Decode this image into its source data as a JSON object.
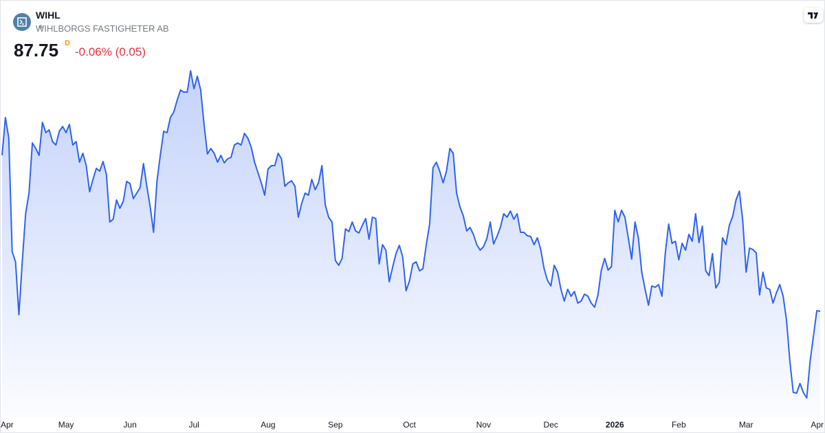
{
  "chart_data": {
    "type": "line",
    "title": "WIHL",
    "subtitle": "WIHLBORGS FASTIGHETER AB",
    "last_price": "87.75",
    "interval_flag": "D",
    "change_label": "-0.06% (0.05)",
    "color": "#2e62f0",
    "ylim": [
      80,
      106
    ],
    "categories": [
      null,
      null,
      "Apr",
      null,
      null,
      null,
      null,
      null,
      null,
      null,
      null,
      null,
      null,
      null,
      null,
      null,
      null,
      null,
      null,
      "May",
      null,
      null,
      null,
      null,
      null,
      null,
      null,
      null,
      null,
      null,
      null,
      null,
      null,
      null,
      null,
      null,
      null,
      null,
      "Jun",
      null,
      null,
      null,
      null,
      null,
      null,
      null,
      null,
      null,
      null,
      null,
      null,
      null,
      null,
      null,
      null,
      null,
      null,
      "Jul",
      null,
      null,
      null,
      null,
      null,
      null,
      null,
      null,
      null,
      null,
      null,
      null,
      null,
      null,
      null,
      null,
      null,
      null,
      null,
      null,
      null,
      "Aug",
      null,
      null,
      null,
      null,
      null,
      null,
      null,
      null,
      null,
      null,
      null,
      null,
      null,
      null,
      null,
      null,
      null,
      null,
      null,
      "Sep",
      null,
      null,
      null,
      null,
      null,
      null,
      null,
      null,
      null,
      null,
      null,
      null,
      null,
      null,
      null,
      null,
      null,
      null,
      null,
      null,
      null,
      "Oct",
      null,
      null,
      null,
      null,
      null,
      null,
      null,
      null,
      null,
      null,
      null,
      null,
      null,
      null,
      null,
      null,
      null,
      null,
      null,
      null,
      null,
      "Nov",
      null,
      null,
      null,
      null,
      null,
      null,
      null,
      null,
      null,
      null,
      null,
      null,
      null,
      null,
      null,
      null,
      null,
      null,
      null,
      "Dec",
      null,
      null,
      null,
      null,
      null,
      null,
      null,
      null,
      null,
      null,
      null,
      null,
      null,
      null,
      null,
      null,
      null,
      null,
      "2026",
      null,
      null,
      null,
      null,
      null,
      null,
      null,
      null,
      null,
      null,
      null,
      null,
      null,
      null,
      null,
      null,
      null,
      null,
      "Feb",
      null,
      null,
      null,
      null,
      null,
      null,
      null,
      null,
      null,
      null,
      null,
      null,
      null,
      null,
      null,
      null,
      null,
      null,
      null,
      "Mar",
      null,
      null,
      null,
      null,
      null,
      null,
      null,
      null,
      null,
      null,
      null,
      null,
      null,
      null,
      null,
      null,
      null,
      null,
      null,
      null,
      "Apr",
      null
    ],
    "values": [
      99.1,
      101.85,
      100.35,
      92.1,
      91.35,
      87.5,
      91.35,
      94.85,
      96.35,
      100.0,
      99.6,
      99.1,
      101.5,
      100.75,
      100.95,
      100.1,
      99.85,
      100.85,
      101.2,
      100.75,
      101.35,
      99.85,
      100.1,
      98.6,
      99.25,
      98.35,
      96.45,
      97.35,
      98.15,
      97.95,
      98.65,
      97.7,
      94.25,
      94.45,
      95.85,
      95.25,
      95.75,
      97.2,
      97.05,
      95.95,
      96.35,
      96.75,
      98.5,
      96.85,
      95.35,
      93.5,
      97.2,
      99.1,
      100.85,
      100.75,
      101.85,
      102.25,
      103.1,
      103.85,
      103.7,
      103.7,
      105.25,
      103.95,
      104.85,
      103.85,
      101.35,
      99.2,
      99.6,
      99.25,
      98.6,
      99.1,
      98.55,
      98.85,
      98.95,
      99.85,
      100.0,
      99.85,
      100.7,
      100.35,
      99.7,
      98.6,
      97.85,
      97.1,
      96.2,
      98.1,
      98.35,
      98.35,
      99.25,
      98.85,
      96.85,
      97.1,
      97.25,
      96.85,
      94.6,
      95.6,
      96.35,
      96.2,
      97.35,
      96.6,
      97.1,
      98.35,
      95.5,
      94.6,
      94.25,
      91.45,
      91.1,
      91.6,
      93.75,
      93.55,
      94.25,
      93.6,
      93.45,
      94.0,
      94.5,
      93.0,
      94.6,
      94.5,
      91.2,
      92.6,
      92.2,
      89.9,
      90.95,
      91.95,
      92.55,
      91.7,
      89.25,
      89.95,
      91.2,
      91.35,
      90.7,
      90.85,
      92.6,
      94.1,
      98.2,
      98.6,
      97.95,
      97.1,
      97.95,
      99.6,
      99.25,
      96.35,
      95.35,
      94.7,
      93.6,
      93.85,
      93.35,
      92.6,
      92.2,
      92.45,
      93.05,
      94.25,
      92.65,
      93.2,
      93.85,
      94.85,
      94.6,
      95.05,
      94.45,
      94.85,
      93.5,
      93.5,
      93.25,
      93.2,
      92.6,
      93.1,
      92.25,
      90.85,
      90.0,
      89.6,
      91.1,
      90.6,
      89.35,
      88.5,
      89.35,
      88.85,
      89.2,
      88.35,
      88.5,
      89.0,
      88.85,
      88.35,
      88.05,
      88.95,
      90.75,
      91.6,
      90.75,
      91.0,
      95.1,
      94.25,
      95.1,
      94.6,
      93.1,
      91.55,
      94.25,
      93.1,
      90.6,
      89.35,
      88.2,
      89.6,
      89.5,
      89.7,
      88.85,
      92.0,
      94.1,
      92.7,
      92.85,
      91.5,
      92.7,
      92.2,
      93.35,
      92.85,
      94.85,
      92.75,
      93.95,
      90.7,
      90.35,
      91.95,
      89.45,
      89.85,
      93.1,
      92.6,
      94.0,
      94.65,
      95.85,
      96.5,
      94.35,
      90.6,
      92.35,
      92.25,
      92.0,
      88.95,
      90.6,
      89.45,
      89.35,
      88.35,
      89.1,
      89.7,
      88.85,
      87.1,
      84.1,
      81.85,
      81.8,
      82.5,
      81.85,
      81.45,
      84.1,
      85.95,
      87.8,
      87.75
    ]
  }
}
